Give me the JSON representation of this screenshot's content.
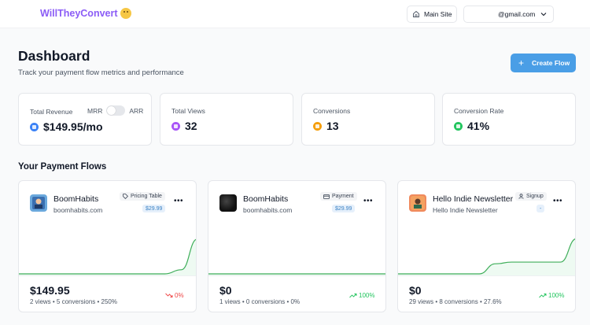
{
  "app": {
    "logo_text": "WillTheyConvert",
    "logo_emoji": "thinking-face"
  },
  "header": {
    "main_site_label": "Main Site",
    "account_label": "@gmail.com"
  },
  "dashboard": {
    "title": "Dashboard",
    "subtitle": "Track your payment flow metrics and performance",
    "create_label": "Create Flow"
  },
  "stats": {
    "revenue": {
      "label": "Total Revenue",
      "toggle_left": "MRR",
      "toggle_right": "ARR",
      "value": "$149.95/mo",
      "color": "#3b82f6"
    },
    "views": {
      "label": "Total Views",
      "value": "32",
      "color": "#a855f7"
    },
    "conversions": {
      "label": "Conversions",
      "value": "13",
      "color": "#f59e0b"
    },
    "rate": {
      "label": "Conversion Rate",
      "value": "41%",
      "color": "#22c55e"
    }
  },
  "flows_section_title": "Your Payment Flows",
  "flows": [
    {
      "name": "BoomHabits",
      "domain": "boomhabits.com",
      "tag": "Pricing Table",
      "tag_icon": "tag-icon",
      "price": "$29.99",
      "amount": "$149.95",
      "meta": "2 views • 5 conversions • 250%",
      "trend": "0%",
      "trend_dir": "down",
      "spark": [
        0,
        0,
        0,
        0,
        0,
        0,
        0,
        0,
        0,
        0,
        0.1,
        0.85
      ]
    },
    {
      "name": "BoomHabits",
      "domain": "boomhabits.com",
      "tag": "Payment",
      "tag_icon": "card-icon",
      "price": "$29.99",
      "amount": "$0",
      "meta": "1 views • 0 conversions • 0%",
      "trend": "100%",
      "trend_dir": "up",
      "spark": [
        0,
        0,
        0,
        0,
        0,
        0,
        0,
        0,
        0,
        0,
        0,
        0
      ]
    },
    {
      "name": "Hello Indie Newsletter",
      "domain": "Hello Indie Newsletter",
      "tag": "Signup",
      "tag_icon": "user-icon",
      "price": "-",
      "amount": "$0",
      "meta": "29 views • 8 conversions • 27.6%",
      "trend": "100%",
      "trend_dir": "up",
      "spark": [
        0,
        0,
        0,
        0,
        0,
        0,
        0.3,
        0.35,
        0.35,
        0.35,
        0.35,
        1.25
      ]
    }
  ]
}
